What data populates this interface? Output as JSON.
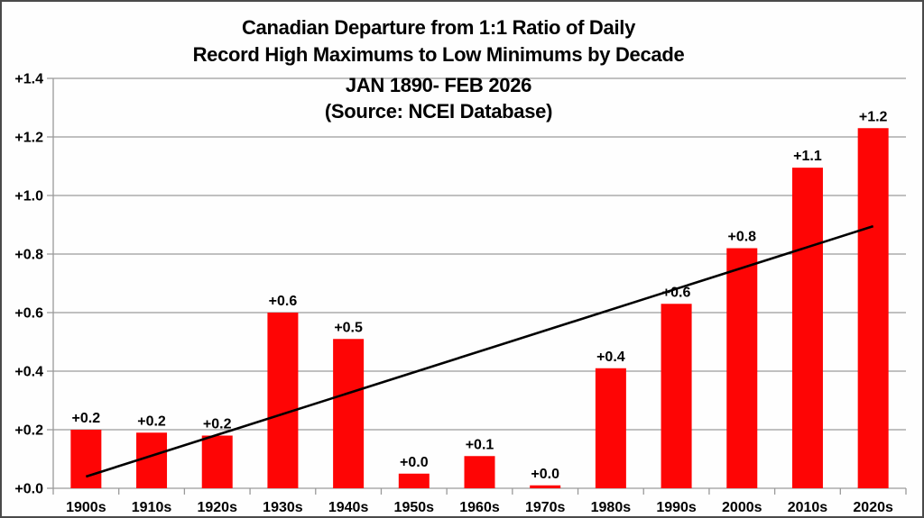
{
  "chart_data": {
    "type": "bar",
    "title_lines": [
      "Canadian Departure from 1:1 Ratio of Daily",
      "Record High Maximums to Low Minimums by Decade",
      "JAN 1890- FEB 2026",
      "(Source: NCEI Database)"
    ],
    "categories": [
      "1900s",
      "1910s",
      "1920s",
      "1930s",
      "1940s",
      "1950s",
      "1960s",
      "1970s",
      "1980s",
      "1990s",
      "2000s",
      "2010s",
      "2020s"
    ],
    "values": [
      0.2,
      0.19,
      0.18,
      0.6,
      0.51,
      0.05,
      0.11,
      0.01,
      0.41,
      0.63,
      0.82,
      1.095,
      1.23
    ],
    "bar_labels": [
      "+0.2",
      "+0.2",
      "+0.2",
      "+0.6",
      "+0.5",
      "+0.0",
      "+0.1",
      "+0.0",
      "+0.4",
      "+0.6",
      "+0.8",
      "+1.1",
      "+1.2"
    ],
    "ytick_labels": [
      "+0.0",
      "+0.2",
      "+0.4",
      "+0.6",
      "+0.8",
      "+1.0",
      "+1.2",
      "+1.4"
    ],
    "ylim": [
      0,
      1.4
    ],
    "xlabel": "",
    "ylabel": "",
    "grid": "horizontal",
    "legend": "none",
    "trendline": {
      "start_category": "1900s",
      "end_category": "2020s",
      "start_value": 0.04,
      "end_value": 0.895
    },
    "colors": {
      "bar": "#fe0505",
      "trend_line": "#000000",
      "grid_line": "#9a9a9a",
      "axis_line": "#9a9a9a",
      "text": "#000000",
      "background": "#fefefe",
      "frame_border": "#4a4a4a"
    }
  }
}
